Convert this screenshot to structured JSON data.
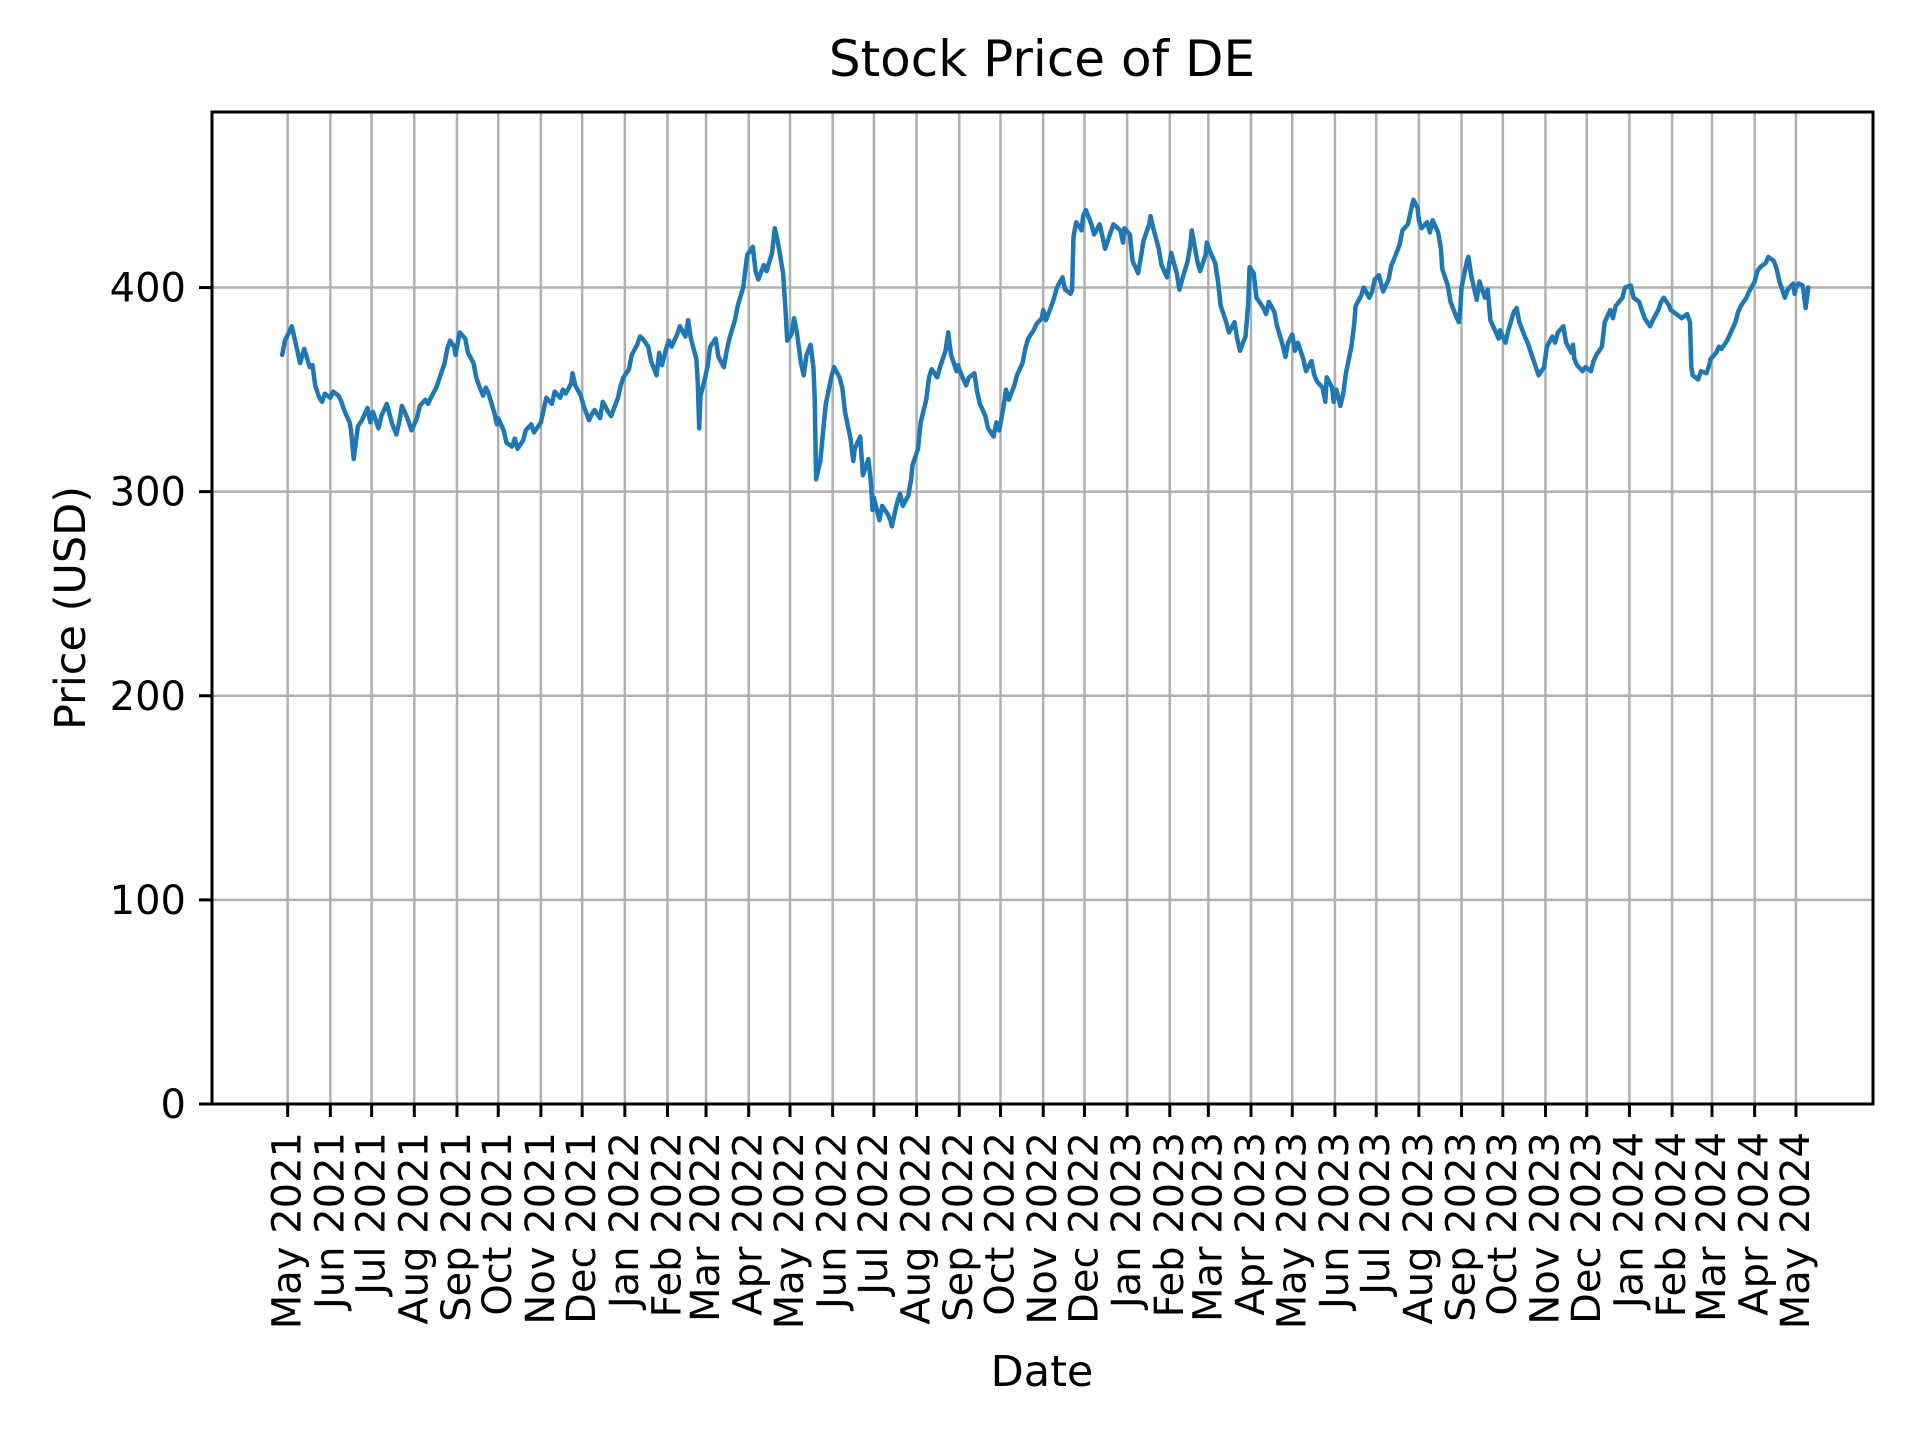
{
  "figure": {
    "title": "Stock Price of DE",
    "xlabel": "Date",
    "ylabel": "Price (USD)"
  },
  "style": {
    "line_color": "#1f77b4",
    "grid_color": "#b0b0b0",
    "axis_color": "#000000",
    "background": "#ffffff"
  },
  "axes": {
    "y_ticks": [
      0,
      100,
      200,
      300,
      400
    ],
    "ylim": [
      0,
      486
    ],
    "x_domain": [
      "2021-03-07",
      "2024-06-26"
    ],
    "x_tick_dates": [
      "2021-05-01",
      "2021-06-01",
      "2021-07-01",
      "2021-08-01",
      "2021-09-01",
      "2021-10-01",
      "2021-11-01",
      "2021-12-01",
      "2022-01-01",
      "2022-02-01",
      "2022-03-01",
      "2022-04-01",
      "2022-05-01",
      "2022-06-01",
      "2022-07-01",
      "2022-08-01",
      "2022-09-01",
      "2022-10-01",
      "2022-11-01",
      "2022-12-01",
      "2023-01-01",
      "2023-02-01",
      "2023-03-01",
      "2023-04-01",
      "2023-05-01",
      "2023-06-01",
      "2023-07-01",
      "2023-08-01",
      "2023-09-01",
      "2023-10-01",
      "2023-11-01",
      "2023-12-01",
      "2024-01-01",
      "2024-02-01",
      "2024-03-01",
      "2024-04-01",
      "2024-05-01"
    ],
    "x_tick_labels": [
      "May 2021",
      "Jun 2021",
      "Jul 2021",
      "Aug 2021",
      "Sep 2021",
      "Oct 2021",
      "Nov 2021",
      "Dec 2021",
      "Jan 2022",
      "Feb 2022",
      "Mar 2022",
      "Apr 2022",
      "May 2022",
      "Jun 2022",
      "Jul 2022",
      "Aug 2022",
      "Sep 2022",
      "Oct 2022",
      "Nov 2022",
      "Dec 2022",
      "Jan 2023",
      "Feb 2023",
      "Mar 2023",
      "Apr 2023",
      "May 2023",
      "Jun 2023",
      "Jul 2023",
      "Aug 2023",
      "Sep 2023",
      "Oct 2023",
      "Nov 2023",
      "Dec 2023",
      "Jan 2024",
      "Feb 2024",
      "Mar 2024",
      "Apr 2024",
      "May 2024"
    ]
  },
  "chart_data": {
    "type": "line",
    "title": "Stock Price of DE",
    "xlabel": "Date",
    "ylabel": "Price (USD)",
    "ylim": [
      0,
      486
    ],
    "grid": true,
    "legend": "none",
    "series": [
      {
        "name": "DE",
        "color": "#1f77b4",
        "dates": [
          "2021-04-27",
          "2021-04-29",
          "2021-05-04",
          "2021-05-06",
          "2021-05-10",
          "2021-05-13",
          "2021-05-17",
          "2021-05-19",
          "2021-05-21",
          "2021-05-24",
          "2021-05-26",
          "2021-05-28",
          "2021-06-01",
          "2021-06-03",
          "2021-06-07",
          "2021-06-09",
          "2021-06-11",
          "2021-06-15",
          "2021-06-16",
          "2021-06-18",
          "2021-06-21",
          "2021-06-24",
          "2021-06-28",
          "2021-06-30",
          "2021-07-02",
          "2021-07-06",
          "2021-07-08",
          "2021-07-12",
          "2021-07-14",
          "2021-07-16",
          "2021-07-19",
          "2021-07-21",
          "2021-07-23",
          "2021-07-27",
          "2021-07-30",
          "2021-08-03",
          "2021-08-05",
          "2021-08-09",
          "2021-08-11",
          "2021-08-13",
          "2021-08-17",
          "2021-08-19",
          "2021-08-23",
          "2021-08-25",
          "2021-08-27",
          "2021-08-30",
          "2021-08-31",
          "2021-09-01",
          "2021-09-03",
          "2021-09-07",
          "2021-09-09",
          "2021-09-13",
          "2021-09-15",
          "2021-09-17",
          "2021-09-20",
          "2021-09-22",
          "2021-09-24",
          "2021-09-28",
          "2021-09-30",
          "2021-10-01",
          "2021-10-05",
          "2021-10-07",
          "2021-10-11",
          "2021-10-13",
          "2021-10-15",
          "2021-10-19",
          "2021-10-21",
          "2021-10-25",
          "2021-10-27",
          "2021-10-29",
          "2021-11-01",
          "2021-11-03",
          "2021-11-05",
          "2021-11-09",
          "2021-11-11",
          "2021-11-15",
          "2021-11-17",
          "2021-11-19",
          "2021-11-23",
          "2021-11-24",
          "2021-11-26",
          "2021-11-30",
          "2021-12-02",
          "2021-12-06",
          "2021-12-08",
          "2021-12-10",
          "2021-12-14",
          "2021-12-16",
          "2021-12-20",
          "2021-12-22",
          "2021-12-27",
          "2021-12-29",
          "2021-12-31",
          "2022-01-04",
          "2022-01-06",
          "2022-01-10",
          "2022-01-12",
          "2022-01-14",
          "2022-01-18",
          "2022-01-20",
          "2022-01-24",
          "2022-01-26",
          "2022-01-28",
          "2022-01-31",
          "2022-02-02",
          "2022-02-04",
          "2022-02-08",
          "2022-02-10",
          "2022-02-14",
          "2022-02-16",
          "2022-02-18",
          "2022-02-22",
          "2022-02-23",
          "2022-02-24",
          "2022-02-25",
          "2022-02-28",
          "2022-03-02",
          "2022-03-04",
          "2022-03-08",
          "2022-03-10",
          "2022-03-14",
          "2022-03-16",
          "2022-03-18",
          "2022-03-22",
          "2022-03-24",
          "2022-03-28",
          "2022-03-30",
          "2022-03-31",
          "2022-04-04",
          "2022-04-06",
          "2022-04-08",
          "2022-04-12",
          "2022-04-14",
          "2022-04-18",
          "2022-04-20",
          "2022-04-22",
          "2022-04-26",
          "2022-04-28",
          "2022-04-29",
          "2022-05-02",
          "2022-05-04",
          "2022-05-06",
          "2022-05-09",
          "2022-05-11",
          "2022-05-13",
          "2022-05-16",
          "2022-05-18",
          "2022-05-19",
          "2022-05-20",
          "2022-05-23",
          "2022-05-25",
          "2022-05-27",
          "2022-05-31",
          "2022-06-02",
          "2022-06-06",
          "2022-06-08",
          "2022-06-10",
          "2022-06-14",
          "2022-06-16",
          "2022-06-17",
          "2022-06-21",
          "2022-06-23",
          "2022-06-27",
          "2022-06-29",
          "2022-06-30",
          "2022-07-01",
          "2022-07-05",
          "2022-07-07",
          "2022-07-11",
          "2022-07-13",
          "2022-07-14",
          "2022-07-18",
          "2022-07-20",
          "2022-07-22",
          "2022-07-26",
          "2022-07-28",
          "2022-07-29",
          "2022-08-02",
          "2022-08-04",
          "2022-08-08",
          "2022-08-10",
          "2022-08-12",
          "2022-08-16",
          "2022-08-18",
          "2022-08-22",
          "2022-08-24",
          "2022-08-26",
          "2022-08-30",
          "2022-08-31",
          "2022-09-01",
          "2022-09-06",
          "2022-09-08",
          "2022-09-12",
          "2022-09-14",
          "2022-09-16",
          "2022-09-20",
          "2022-09-22",
          "2022-09-26",
          "2022-09-28",
          "2022-09-30",
          "2022-10-03",
          "2022-10-05",
          "2022-10-07",
          "2022-10-11",
          "2022-10-13",
          "2022-10-17",
          "2022-10-19",
          "2022-10-21",
          "2022-10-25",
          "2022-10-27",
          "2022-10-31",
          "2022-11-01",
          "2022-11-03",
          "2022-11-07",
          "2022-11-09",
          "2022-11-11",
          "2022-11-15",
          "2022-11-17",
          "2022-11-21",
          "2022-11-22",
          "2022-11-23",
          "2022-11-25",
          "2022-11-29",
          "2022-11-30",
          "2022-12-02",
          "2022-12-06",
          "2022-12-08",
          "2022-12-12",
          "2022-12-14",
          "2022-12-16",
          "2022-12-20",
          "2022-12-22",
          "2022-12-27",
          "2022-12-29",
          "2022-12-30",
          "2023-01-03",
          "2023-01-05",
          "2023-01-09",
          "2023-01-11",
          "2023-01-13",
          "2023-01-17",
          "2023-01-18",
          "2023-01-20",
          "2023-01-24",
          "2023-01-26",
          "2023-01-30",
          "2023-01-31",
          "2023-02-02",
          "2023-02-06",
          "2023-02-08",
          "2023-02-10",
          "2023-02-14",
          "2023-02-16",
          "2023-02-17",
          "2023-02-21",
          "2023-02-23",
          "2023-02-27",
          "2023-02-28",
          "2023-03-02",
          "2023-03-06",
          "2023-03-08",
          "2023-03-10",
          "2023-03-14",
          "2023-03-16",
          "2023-03-20",
          "2023-03-22",
          "2023-03-24",
          "2023-03-28",
          "2023-03-30",
          "2023-03-31",
          "2023-04-03",
          "2023-04-05",
          "2023-04-10",
          "2023-04-12",
          "2023-04-14",
          "2023-04-18",
          "2023-04-20",
          "2023-04-24",
          "2023-04-26",
          "2023-04-28",
          "2023-05-01",
          "2023-05-03",
          "2023-05-05",
          "2023-05-09",
          "2023-05-11",
          "2023-05-15",
          "2023-05-17",
          "2023-05-19",
          "2023-05-23",
          "2023-05-25",
          "2023-05-26",
          "2023-05-30",
          "2023-05-31",
          "2023-06-02",
          "2023-06-05",
          "2023-06-07",
          "2023-06-09",
          "2023-06-13",
          "2023-06-15",
          "2023-06-16",
          "2023-06-20",
          "2023-06-22",
          "2023-06-26",
          "2023-06-28",
          "2023-06-30",
          "2023-07-03",
          "2023-07-06",
          "2023-07-10",
          "2023-07-12",
          "2023-07-14",
          "2023-07-18",
          "2023-07-20",
          "2023-07-24",
          "2023-07-26",
          "2023-07-28",
          "2023-07-31",
          "2023-08-01",
          "2023-08-03",
          "2023-08-07",
          "2023-08-09",
          "2023-08-11",
          "2023-08-15",
          "2023-08-17",
          "2023-08-18",
          "2023-08-22",
          "2023-08-24",
          "2023-08-28",
          "2023-08-30",
          "2023-08-31",
          "2023-09-01",
          "2023-09-05",
          "2023-09-06",
          "2023-09-08",
          "2023-09-12",
          "2023-09-14",
          "2023-09-18",
          "2023-09-20",
          "2023-09-22",
          "2023-09-26",
          "2023-09-28",
          "2023-09-29",
          "2023-10-03",
          "2023-10-05",
          "2023-10-09",
          "2023-10-11",
          "2023-10-13",
          "2023-10-17",
          "2023-10-19",
          "2023-10-23",
          "2023-10-25",
          "2023-10-27",
          "2023-10-31",
          "2023-11-02",
          "2023-11-06",
          "2023-11-08",
          "2023-11-10",
          "2023-11-14",
          "2023-11-16",
          "2023-11-20",
          "2023-11-21",
          "2023-11-22",
          "2023-11-24",
          "2023-11-28",
          "2023-11-30",
          "2023-12-04",
          "2023-12-06",
          "2023-12-08",
          "2023-12-12",
          "2023-12-14",
          "2023-12-18",
          "2023-12-20",
          "2023-12-22",
          "2023-12-27",
          "2023-12-28",
          "2023-12-29",
          "2024-01-02",
          "2024-01-04",
          "2024-01-08",
          "2024-01-10",
          "2024-01-12",
          "2024-01-16",
          "2024-01-18",
          "2024-01-22",
          "2024-01-24",
          "2024-01-26",
          "2024-01-30",
          "2024-01-31",
          "2024-02-02",
          "2024-02-06",
          "2024-02-08",
          "2024-02-12",
          "2024-02-14",
          "2024-02-15",
          "2024-02-16",
          "2024-02-20",
          "2024-02-22",
          "2024-02-26",
          "2024-02-28",
          "2024-02-29",
          "2024-03-04",
          "2024-03-06",
          "2024-03-08",
          "2024-03-12",
          "2024-03-14",
          "2024-03-18",
          "2024-03-20",
          "2024-03-22",
          "2024-03-26",
          "2024-03-28",
          "2024-04-01",
          "2024-04-03",
          "2024-04-05",
          "2024-04-09",
          "2024-04-11",
          "2024-04-15",
          "2024-04-17",
          "2024-04-19",
          "2024-04-23",
          "2024-04-25",
          "2024-04-29",
          "2024-04-30",
          "2024-05-01",
          "2024-05-03",
          "2024-05-06",
          "2024-05-08",
          "2024-05-10"
        ],
        "values": [
          367,
          374,
          381,
          375,
          363,
          370,
          361,
          362,
          352,
          346,
          344,
          348,
          346,
          349,
          347,
          344,
          340,
          334,
          330,
          316,
          332,
          335,
          341,
          334,
          339,
          331,
          337,
          343,
          338,
          333,
          328,
          334,
          342,
          336,
          330,
          336,
          342,
          345,
          343,
          346,
          351,
          355,
          363,
          370,
          374,
          371,
          367,
          371,
          378,
          375,
          368,
          363,
          356,
          352,
          347,
          351,
          348,
          339,
          333,
          336,
          330,
          324,
          322,
          326,
          321,
          325,
          330,
          333,
          329,
          331,
          334,
          340,
          346,
          343,
          349,
          346,
          350,
          348,
          353,
          358,
          352,
          347,
          342,
          335,
          338,
          340,
          336,
          344,
          339,
          337,
          346,
          352,
          356,
          360,
          367,
          372,
          376,
          375,
          371,
          364,
          357,
          368,
          362,
          370,
          374,
          371,
          377,
          381,
          376,
          384,
          375,
          365,
          353,
          331,
          347,
          355,
          361,
          371,
          375,
          366,
          361,
          369,
          375,
          384,
          391,
          400,
          411,
          416,
          420,
          408,
          404,
          411,
          408,
          417,
          429,
          423,
          407,
          386,
          374,
          377,
          385,
          378,
          363,
          357,
          367,
          372,
          361,
          346,
          306,
          315,
          329,
          343,
          356,
          361,
          356,
          351,
          339,
          326,
          315,
          321,
          327,
          308,
          316,
          303,
          291,
          297,
          286,
          293,
          289,
          286,
          283,
          295,
          299,
          293,
          298,
          306,
          313,
          321,
          334,
          345,
          356,
          360,
          356,
          361,
          369,
          378,
          367,
          359,
          362,
          360,
          352,
          356,
          358,
          349,
          343,
          337,
          331,
          327,
          334,
          330,
          341,
          350,
          345,
          352,
          357,
          363,
          370,
          375,
          379,
          382,
          385,
          389,
          384,
          391,
          395,
          400,
          405,
          399,
          397,
          399,
          425,
          432,
          428,
          435,
          438,
          431,
          426,
          431,
          425,
          419,
          427,
          431,
          428,
          422,
          429,
          426,
          413,
          407,
          415,
          423,
          431,
          435,
          429,
          419,
          411,
          405,
          409,
          417,
          407,
          399,
          404,
          413,
          421,
          428,
          413,
          408,
          416,
          422,
          418,
          412,
          403,
          391,
          383,
          378,
          383,
          375,
          369,
          376,
          392,
          410,
          407,
          395,
          390,
          387,
          393,
          388,
          381,
          372,
          366,
          373,
          377,
          369,
          373,
          365,
          359,
          364,
          357,
          354,
          351,
          344,
          356,
          351,
          344,
          350,
          342,
          348,
          358,
          371,
          382,
          391,
          396,
          400,
          395,
          398,
          404,
          406,
          398,
          404,
          411,
          414,
          421,
          428,
          431,
          437,
          443,
          439,
          433,
          429,
          432,
          427,
          433,
          427,
          419,
          409,
          401,
          393,
          386,
          383,
          389,
          400,
          413,
          415,
          406,
          394,
          403,
          395,
          399,
          384,
          378,
          375,
          379,
          373,
          379,
          388,
          390,
          383,
          376,
          373,
          365,
          361,
          357,
          361,
          371,
          376,
          373,
          378,
          381,
          373,
          368,
          372,
          365,
          362,
          359,
          361,
          359,
          364,
          367,
          371,
          383,
          389,
          385,
          391,
          395,
          398,
          400,
          401,
          395,
          393,
          389,
          385,
          381,
          384,
          389,
          393,
          395,
          391,
          389,
          388,
          386,
          385,
          387,
          383,
          361,
          357,
          355,
          359,
          358,
          362,
          365,
          368,
          371,
          370,
          374,
          377,
          383,
          388,
          391,
          395,
          398,
          403,
          408,
          410,
          412,
          415,
          413,
          409,
          403,
          395,
          399,
          402,
          397,
          400,
          402,
          401,
          390,
          400
        ]
      }
    ]
  }
}
